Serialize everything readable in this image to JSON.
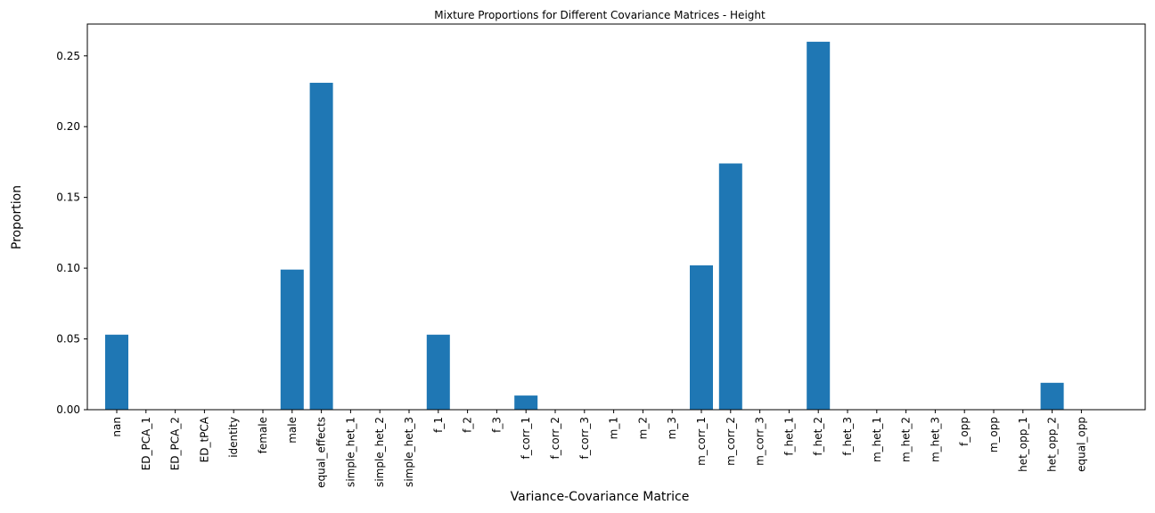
{
  "chart_data": {
    "type": "bar",
    "title": "Mixture Proportions for Different Covariance Matrices - Height",
    "xlabel": "Variance-Covariance Matrice",
    "ylabel": "Proportion",
    "ylim": [
      0,
      0.2725
    ],
    "yticks": [
      0.0,
      0.05,
      0.1,
      0.15,
      0.2,
      0.25
    ],
    "ytick_labels": [
      "0.00",
      "0.05",
      "0.10",
      "0.15",
      "0.20",
      "0.25"
    ],
    "grid": false,
    "bar_color": "#1f77b4",
    "categories": [
      "nan",
      "ED_PCA_1",
      "ED_PCA_2",
      "ED_tPCA",
      "identity",
      "female",
      "male",
      "equal_effects",
      "simple_het_1",
      "simple_het_2",
      "simple_het_3",
      "f_1",
      "f_2",
      "f_3",
      "f_corr_1",
      "f_corr_2",
      "f_corr_3",
      "m_1",
      "m_2",
      "m_3",
      "m_corr_1",
      "m_corr_2",
      "m_corr_3",
      "f_het_1",
      "f_het_2",
      "f_het_3",
      "m_het_1",
      "m_het_2",
      "m_het_3",
      "f_opp",
      "m_opp",
      "het_opp_1",
      "het_opp_2",
      "equal_opp"
    ],
    "values": [
      0.053,
      0,
      0,
      0,
      0,
      0,
      0.099,
      0.231,
      0,
      0,
      0,
      0.053,
      0,
      0,
      0.01,
      0,
      0,
      0,
      0,
      0,
      0.102,
      0.174,
      0,
      0,
      0.26,
      0,
      0,
      0,
      0,
      0,
      0,
      0,
      0.019,
      0
    ]
  }
}
